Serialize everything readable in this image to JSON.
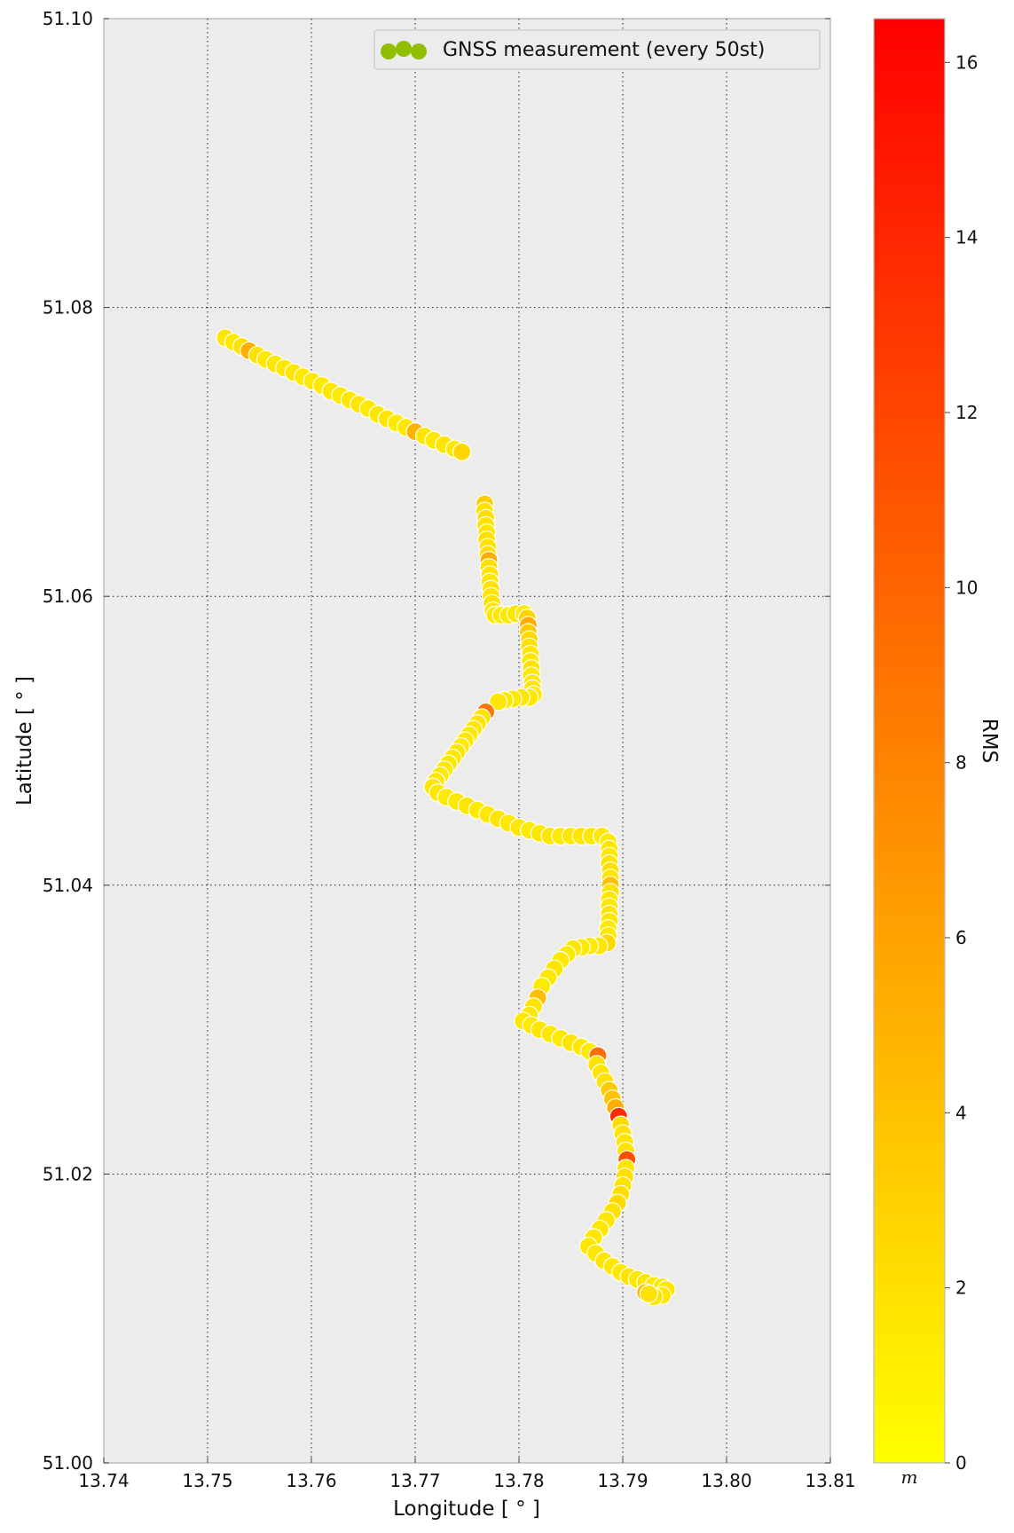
{
  "chart_data": {
    "type": "scatter",
    "xlabel": "Longitude [$^\\circ$]",
    "xlabel_display": "Longitude [ ° ]",
    "ylabel": "Latitude [$^\\circ$]",
    "ylabel_display": "Latitude [ ° ]",
    "xlim": [
      13.74,
      13.81
    ],
    "ylim": [
      51.0,
      51.1
    ],
    "xticks": [
      "13.74",
      "13.75",
      "13.76",
      "13.77",
      "13.78",
      "13.79",
      "13.80",
      "13.81"
    ],
    "yticks": [
      "51.00",
      "51.02",
      "51.04",
      "51.06",
      "51.08",
      "51.10"
    ],
    "grid": true,
    "legend": {
      "label": "GNSS measurement (every 50st)",
      "position": "top-right",
      "marker_color": "#8fbf00"
    },
    "colorbar": {
      "label": "RMS",
      "unit": "$m$",
      "unit_display": "m",
      "range": [
        0,
        16.5
      ],
      "ticks": [
        "0",
        "2",
        "4",
        "6",
        "8",
        "10",
        "12",
        "14",
        "16"
      ],
      "colormap": "autumn_r",
      "color_low": "#ffff00",
      "color_high": "#ff0000"
    },
    "series": [
      {
        "points": [
          [
            13.7517,
            51.0779,
            1.6
          ],
          [
            13.7525,
            51.0776,
            1.4
          ],
          [
            13.7533,
            51.0773,
            1.8
          ],
          [
            13.754,
            51.077,
            5.2
          ],
          [
            13.7548,
            51.0767,
            1.9
          ],
          [
            13.7556,
            51.0764,
            1.4
          ],
          [
            13.7565,
            51.0761,
            1.6
          ],
          [
            13.7574,
            51.0758,
            1.5
          ],
          [
            13.7583,
            51.0755,
            1.7
          ],
          [
            13.7592,
            51.0752,
            1.4
          ],
          [
            13.7601,
            51.0749,
            1.5
          ],
          [
            13.761,
            51.0746,
            1.3
          ],
          [
            13.7619,
            51.0742,
            1.6
          ],
          [
            13.7628,
            51.0739,
            1.4
          ],
          [
            13.7637,
            51.0736,
            1.5
          ],
          [
            13.7646,
            51.0733,
            1.7
          ],
          [
            13.7655,
            51.073,
            1.4
          ],
          [
            13.7664,
            51.0726,
            1.5
          ],
          [
            13.7673,
            51.0723,
            1.6
          ],
          [
            13.7682,
            51.072,
            1.4
          ],
          [
            13.7691,
            51.0717,
            1.5
          ],
          [
            13.77,
            51.0714,
            5.0
          ],
          [
            13.7709,
            51.0711,
            1.6
          ],
          [
            13.7718,
            51.0708,
            1.4
          ],
          [
            13.7728,
            51.0705,
            1.7
          ],
          [
            13.7738,
            51.0702,
            1.5
          ],
          [
            13.7745,
            51.07,
            2.6
          ],
          [
            13.7767,
            51.0664,
            3.2
          ],
          [
            13.7767,
            51.0659,
            1.8
          ],
          [
            13.7768,
            51.0654,
            2.2
          ],
          [
            13.7768,
            51.0649,
            1.9
          ],
          [
            13.7769,
            51.0644,
            1.7
          ],
          [
            13.7769,
            51.0639,
            2.0
          ],
          [
            13.777,
            51.0634,
            1.8
          ],
          [
            13.777,
            51.0629,
            2.1
          ],
          [
            13.7771,
            51.0625,
            5.4
          ],
          [
            13.7771,
            51.062,
            2.0
          ],
          [
            13.7772,
            51.0615,
            1.8
          ],
          [
            13.7772,
            51.061,
            1.6
          ],
          [
            13.7773,
            51.0605,
            1.9
          ],
          [
            13.7773,
            51.06,
            1.7
          ],
          [
            13.7774,
            51.0595,
            1.8
          ],
          [
            13.7775,
            51.059,
            1.6
          ],
          [
            13.7777,
            51.0587,
            1.5
          ],
          [
            13.7783,
            51.0587,
            1.4
          ],
          [
            13.779,
            51.0587,
            1.5
          ],
          [
            13.7797,
            51.0588,
            1.6
          ],
          [
            13.7805,
            51.0588,
            1.4
          ],
          [
            13.7808,
            51.0585,
            2.8
          ],
          [
            13.7809,
            51.058,
            5.3
          ],
          [
            13.7809,
            51.0575,
            3.5
          ],
          [
            13.781,
            51.057,
            2.4
          ],
          [
            13.781,
            51.0565,
            1.9
          ],
          [
            13.7811,
            51.056,
            1.7
          ],
          [
            13.7811,
            51.0555,
            1.6
          ],
          [
            13.7812,
            51.055,
            1.8
          ],
          [
            13.7812,
            51.0545,
            1.5
          ],
          [
            13.7813,
            51.054,
            1.7
          ],
          [
            13.7813,
            51.0536,
            1.6
          ],
          [
            13.7814,
            51.0532,
            1.4
          ],
          [
            13.781,
            51.053,
            1.5
          ],
          [
            13.7802,
            51.053,
            1.6
          ],
          [
            13.7794,
            51.0529,
            1.4
          ],
          [
            13.7786,
            51.0528,
            1.5
          ],
          [
            13.778,
            51.0527,
            1.6
          ],
          [
            13.7768,
            51.052,
            8.8
          ],
          [
            13.7764,
            51.0516,
            1.9
          ],
          [
            13.776,
            51.0512,
            1.6
          ],
          [
            13.7756,
            51.0508,
            1.7
          ],
          [
            13.7752,
            51.0504,
            1.5
          ],
          [
            13.7748,
            51.05,
            1.6
          ],
          [
            13.7744,
            51.0496,
            1.4
          ],
          [
            13.774,
            51.0492,
            1.7
          ],
          [
            13.7736,
            51.0488,
            1.5
          ],
          [
            13.7732,
            51.0484,
            1.6
          ],
          [
            13.7728,
            51.048,
            1.4
          ],
          [
            13.7724,
            51.0476,
            1.5
          ],
          [
            13.772,
            51.0472,
            1.7
          ],
          [
            13.7717,
            51.0468,
            1.5
          ],
          [
            13.7722,
            51.0464,
            1.6
          ],
          [
            13.773,
            51.0461,
            1.4
          ],
          [
            13.774,
            51.0458,
            1.5
          ],
          [
            13.775,
            51.0455,
            1.6
          ],
          [
            13.776,
            51.0452,
            1.4
          ],
          [
            13.777,
            51.0449,
            1.5
          ],
          [
            13.778,
            51.0446,
            1.7
          ],
          [
            13.779,
            51.0443,
            1.5
          ],
          [
            13.78,
            51.044,
            1.6
          ],
          [
            13.781,
            51.0438,
            1.4
          ],
          [
            13.782,
            51.0436,
            1.5
          ],
          [
            13.783,
            51.0434,
            1.6
          ],
          [
            13.784,
            51.0434,
            1.4
          ],
          [
            13.785,
            51.0434,
            1.5
          ],
          [
            13.786,
            51.0434,
            1.7
          ],
          [
            13.787,
            51.0434,
            1.5
          ],
          [
            13.788,
            51.0434,
            1.6
          ],
          [
            13.7886,
            51.043,
            1.4
          ],
          [
            13.7887,
            51.0425,
            1.6
          ],
          [
            13.7887,
            51.042,
            1.5
          ],
          [
            13.7887,
            51.0415,
            1.8
          ],
          [
            13.7888,
            51.041,
            2.0
          ],
          [
            13.7888,
            51.0405,
            1.7
          ],
          [
            13.7888,
            51.04,
            4.0
          ],
          [
            13.7888,
            51.0395,
            1.8
          ],
          [
            13.7887,
            51.039,
            1.6
          ],
          [
            13.7887,
            51.0385,
            1.5
          ],
          [
            13.7887,
            51.038,
            1.7
          ],
          [
            13.7887,
            51.0375,
            1.6
          ],
          [
            13.7886,
            51.037,
            1.4
          ],
          [
            13.7886,
            51.0365,
            1.5
          ],
          [
            13.7885,
            51.036,
            2.5
          ],
          [
            13.7877,
            51.0358,
            1.6
          ],
          [
            13.7868,
            51.0358,
            1.4
          ],
          [
            13.786,
            51.0357,
            1.5
          ],
          [
            13.7852,
            51.0356,
            1.6
          ],
          [
            13.7846,
            51.0352,
            1.5
          ],
          [
            13.784,
            51.0348,
            1.4
          ],
          [
            13.7834,
            51.0342,
            1.6
          ],
          [
            13.7828,
            51.0336,
            1.5
          ],
          [
            13.7822,
            51.033,
            1.4
          ],
          [
            13.7818,
            51.0322,
            4.2
          ],
          [
            13.7814,
            51.0316,
            1.6
          ],
          [
            13.781,
            51.031,
            1.5
          ],
          [
            13.7804,
            51.0306,
            1.5
          ],
          [
            13.7812,
            51.0303,
            1.4
          ],
          [
            13.782,
            51.03,
            1.6
          ],
          [
            13.783,
            51.0297,
            1.5
          ],
          [
            13.784,
            51.0294,
            1.4
          ],
          [
            13.785,
            51.0291,
            1.6
          ],
          [
            13.786,
            51.0288,
            1.5
          ],
          [
            13.7868,
            51.0285,
            1.4
          ],
          [
            13.7876,
            51.0282,
            9.5
          ],
          [
            13.7875,
            51.0276,
            1.8
          ],
          [
            13.7879,
            51.027,
            1.6
          ],
          [
            13.7883,
            51.0264,
            1.9
          ],
          [
            13.7887,
            51.0258,
            3.5
          ],
          [
            13.789,
            51.0252,
            3.8
          ],
          [
            13.7893,
            51.0246,
            5.2
          ],
          [
            13.7896,
            51.024,
            13.5
          ],
          [
            13.7898,
            51.0234,
            2.2
          ],
          [
            13.79,
            51.0228,
            1.8
          ],
          [
            13.7902,
            51.0222,
            1.6
          ],
          [
            13.7903,
            51.0216,
            1.9
          ],
          [
            13.7904,
            51.021,
            11.5
          ],
          [
            13.7903,
            51.0204,
            1.7
          ],
          [
            13.7902,
            51.0198,
            2.0
          ],
          [
            13.79,
            51.0192,
            1.8
          ],
          [
            13.7898,
            51.0186,
            2.1
          ],
          [
            13.7895,
            51.018,
            2.4
          ],
          [
            13.789,
            51.0174,
            1.9
          ],
          [
            13.7884,
            51.0168,
            1.6
          ],
          [
            13.7878,
            51.0162,
            1.5
          ],
          [
            13.7872,
            51.0156,
            1.4
          ],
          [
            13.7867,
            51.015,
            1.7
          ],
          [
            13.7874,
            51.0145,
            1.5
          ],
          [
            13.7882,
            51.014,
            1.6
          ],
          [
            13.789,
            51.0136,
            1.4
          ],
          [
            13.7898,
            51.0132,
            1.5
          ],
          [
            13.7906,
            51.0129,
            1.7
          ],
          [
            13.7914,
            51.0127,
            1.5
          ],
          [
            13.7922,
            51.0125,
            1.6
          ],
          [
            13.793,
            51.0123,
            1.4
          ],
          [
            13.7938,
            51.0122,
            1.5
          ],
          [
            13.7942,
            51.012,
            1.6
          ],
          [
            13.7938,
            51.0116,
            1.4
          ],
          [
            13.793,
            51.0115,
            1.7
          ],
          [
            13.7922,
            51.0118,
            4.5
          ],
          [
            13.7925,
            51.0117,
            1.8
          ]
        ]
      }
    ]
  }
}
